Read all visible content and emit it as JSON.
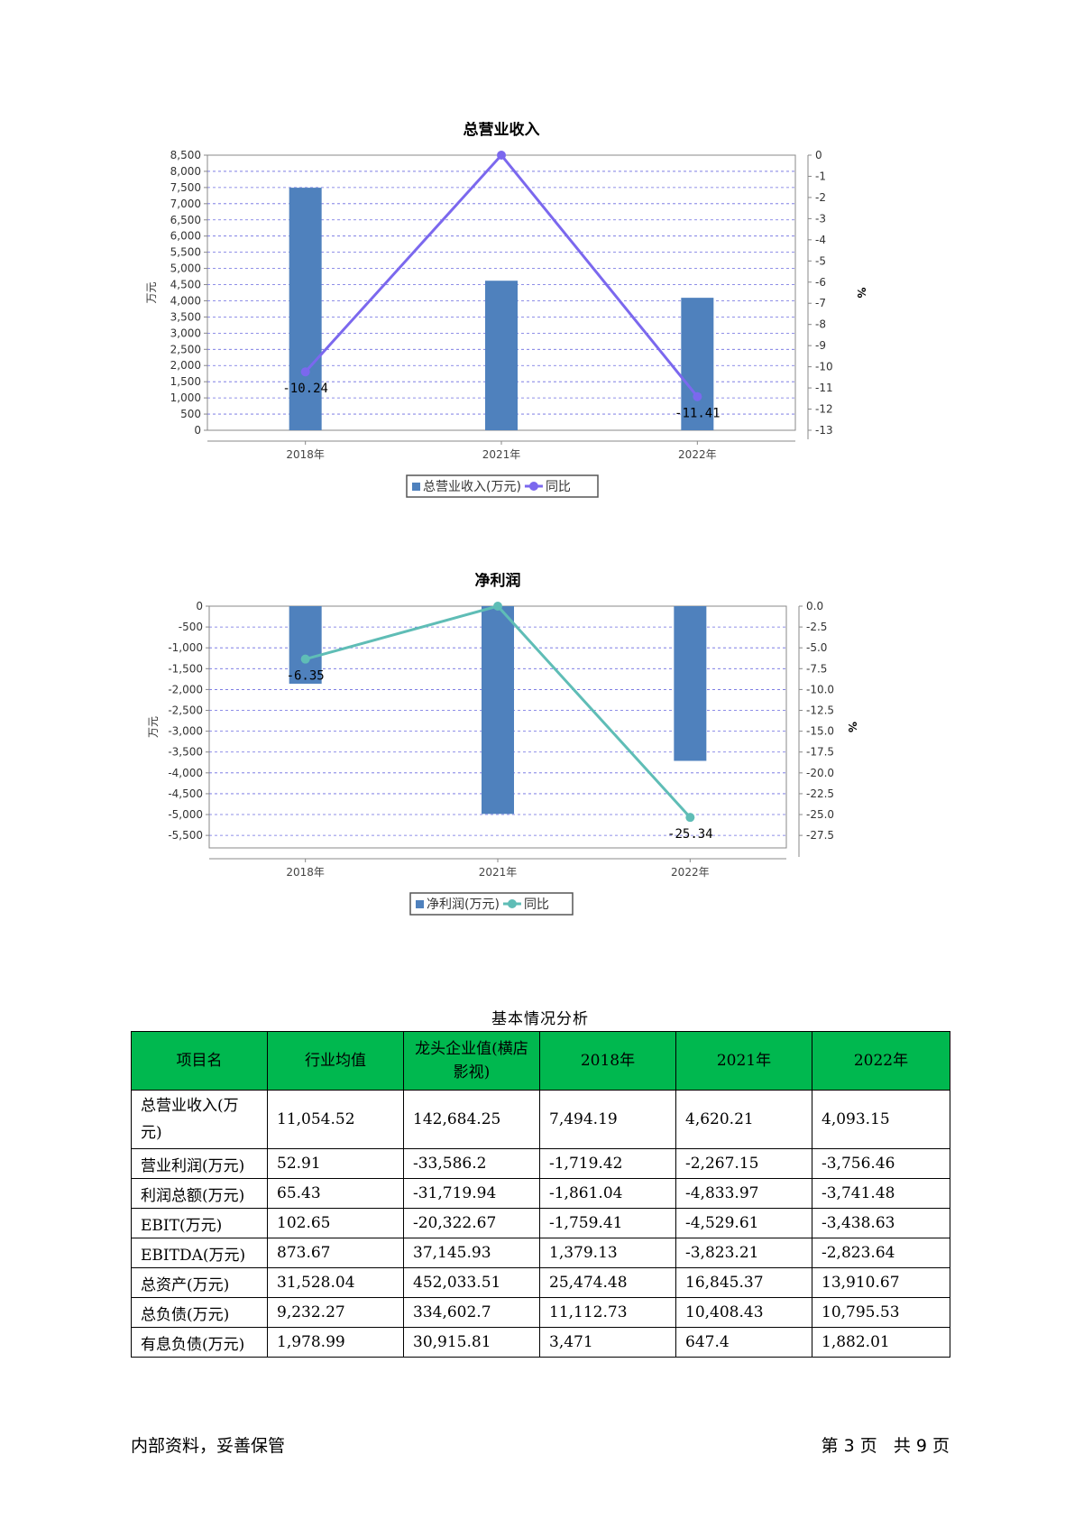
{
  "chart_data": [
    {
      "type": "bar+line",
      "title": "总营业收入",
      "categories": [
        "2018年",
        "2021年",
        "2022年"
      ],
      "series": [
        {
          "name": "总营业收入(万元)",
          "type": "bar",
          "values": [
            7494.19,
            4620.21,
            4093.15
          ],
          "color": "#4F81BD"
        },
        {
          "name": "同比",
          "type": "line",
          "values": [
            -10.24,
            0,
            -11.41
          ],
          "color": "#7B68EE"
        }
      ],
      "labels": [
        "-10.24",
        "",
        "-11.41"
      ],
      "ylabel": "万元",
      "y2label": "%",
      "ylim": [
        0,
        8500
      ],
      "y2lim": [
        -13,
        0
      ],
      "yticks": [
        "0",
        "500",
        "1,000",
        "1,500",
        "2,000",
        "2,500",
        "3,000",
        "3,500",
        "4,000",
        "4,500",
        "5,000",
        "5,500",
        "6,000",
        "6,500",
        "7,000",
        "7,500",
        "8,000",
        "8,500"
      ],
      "y2ticks": [
        "0",
        "-1",
        "-2",
        "-3",
        "-4",
        "-5",
        "-6",
        "-7",
        "-8",
        "-9",
        "-10",
        "-11",
        "-12",
        "-13"
      ],
      "grid": true,
      "legend": "bottom"
    },
    {
      "type": "bar+line",
      "title": "净利润",
      "categories": [
        "2018年",
        "2021年",
        "2022年"
      ],
      "series": [
        {
          "name": "净利润(万元)",
          "type": "bar",
          "values": [
            -1861.04,
            -4985,
            -3712
          ],
          "color": "#4F81BD"
        },
        {
          "name": "同比",
          "type": "line",
          "values": [
            -6.35,
            0,
            -25.34
          ],
          "color": "#5FBDB6"
        }
      ],
      "labels": [
        "-6.35",
        "",
        "-25.34"
      ],
      "ylabel": "万元",
      "y2label": "%",
      "ylim": [
        -5800,
        0
      ],
      "y2lim": [
        -29,
        0
      ],
      "yticks": [
        "0",
        "-500",
        "-1,000",
        "-1,500",
        "-2,000",
        "-2,500",
        "-3,000",
        "-3,500",
        "-4,000",
        "-4,500",
        "-5,000",
        "-5,500"
      ],
      "y2ticks": [
        "0.0",
        "-2.5",
        "-5.0",
        "-7.5",
        "-10.0",
        "-12.5",
        "-15.0",
        "-17.5",
        "-20.0",
        "-22.5",
        "-25.0",
        "-27.5"
      ],
      "grid": true,
      "legend": "bottom"
    }
  ],
  "table": {
    "title": "基本情况分析",
    "headers": [
      "项目名",
      "行业均值",
      "龙头企业值(横店影视)",
      "2018年",
      "2021年",
      "2022年"
    ],
    "rows": [
      [
        "总营业收入(万元)",
        "11,054.52",
        "142,684.25",
        "7,494.19",
        "4,620.21",
        "4,093.15"
      ],
      [
        "营业利润(万元)",
        "52.91",
        "-33,586.2",
        "-1,719.42",
        "-2,267.15",
        "-3,756.46"
      ],
      [
        "利润总额(万元)",
        "65.43",
        "-31,719.94",
        "-1,861.04",
        "-4,833.97",
        "-3,741.48"
      ],
      [
        "EBIT(万元)",
        "102.65",
        "-20,322.67",
        "-1,759.41",
        "-4,529.61",
        "-3,438.63"
      ],
      [
        "EBITDA(万元)",
        "873.67",
        "37,145.93",
        "1,379.13",
        "-3,823.21",
        "-2,823.64"
      ],
      [
        "总资产(万元)",
        "31,528.04",
        "452,033.51",
        "25,474.48",
        "16,845.37",
        "13,910.67"
      ],
      [
        "总负债(万元)",
        "9,232.27",
        "334,602.7",
        "11,112.73",
        "10,408.43",
        "10,795.53"
      ],
      [
        "有息负债(万元)",
        "1,978.99",
        "30,915.81",
        "3,471",
        "647.4",
        "1,882.01"
      ]
    ]
  },
  "footer": {
    "left": "内部资料，妥善保管",
    "right": "第 3 页   共 9 页"
  }
}
